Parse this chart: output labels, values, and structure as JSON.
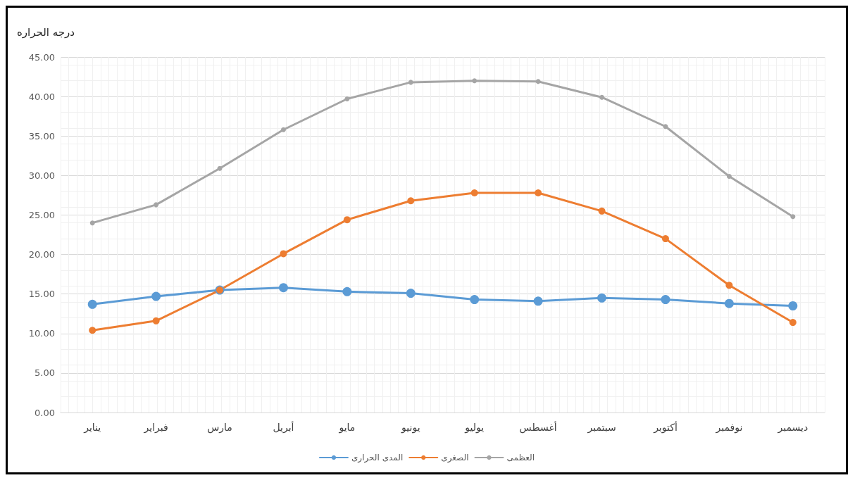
{
  "chart_data": {
    "type": "line",
    "ylabel": "درجه الحراره",
    "categories": [
      "يناير",
      "فبراير",
      "مارس",
      "أبريل",
      "مايو",
      "يونيو",
      "يوليو",
      "أغسطس",
      "سبتمبر",
      "أكتوبر",
      "نوفمبر",
      "ديسمبر"
    ],
    "series": [
      {
        "name": "المدى الحرارى",
        "color": "#5b9bd5",
        "values": [
          13.7,
          14.7,
          15.5,
          15.8,
          15.3,
          15.1,
          14.3,
          14.1,
          14.5,
          14.3,
          13.8,
          13.5
        ]
      },
      {
        "name": "الصغرى",
        "color": "#ed7d31",
        "values": [
          10.4,
          11.6,
          15.5,
          20.1,
          24.4,
          26.8,
          27.8,
          27.8,
          25.5,
          22.0,
          16.1,
          11.4
        ]
      },
      {
        "name": "العظمى",
        "color": "#a5a5a5",
        "values": [
          24.0,
          26.3,
          30.9,
          35.8,
          39.7,
          41.8,
          42.0,
          41.9,
          39.9,
          36.2,
          29.9,
          24.8
        ]
      }
    ],
    "ylim": [
      0,
      45
    ],
    "yticks": [
      {
        "value": 0,
        "label": "0.00"
      },
      {
        "value": 5,
        "label": "5.00"
      },
      {
        "value": 10,
        "label": "10.00"
      },
      {
        "value": 15,
        "label": "15.00"
      },
      {
        "value": 20,
        "label": "20.00"
      },
      {
        "value": 25,
        "label": "25.00"
      },
      {
        "value": 30,
        "label": "30.00"
      },
      {
        "value": 35,
        "label": "35.00"
      },
      {
        "value": 40,
        "label": "40.00"
      },
      {
        "value": 45,
        "label": "45.00"
      }
    ],
    "grid": true,
    "legend": "bottom",
    "marker": "circle",
    "line_style": "solid"
  }
}
